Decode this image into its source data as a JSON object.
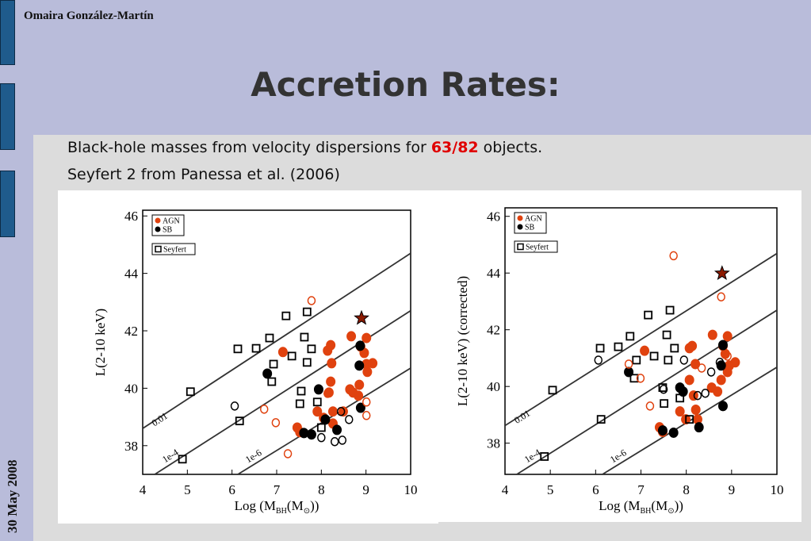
{
  "slide": {
    "author": "Omaira González-Martín",
    "title": "Accretion Rates:",
    "date": "30 May 2008",
    "line1": [
      "Black-hole masses from velocity dispersions for ",
      "63/82",
      " objects."
    ],
    "line2": "Seyfert 2 from Panessa et al. (2006)"
  },
  "chart_data": [
    {
      "type": "scatter",
      "ylabel": "L(2-10 keV)",
      "xlabel_parts": [
        "Log (M",
        "BH",
        "(M",
        "⊙",
        "))"
      ],
      "xlim": [
        4,
        10
      ],
      "ylim": [
        37,
        46.2
      ],
      "xticks": [
        4,
        5,
        6,
        7,
        8,
        9,
        10
      ],
      "yticks": [
        38,
        40,
        42,
        44,
        46
      ],
      "legend": "upper left",
      "series": [
        {
          "name": "AGN",
          "color": "#e0420f",
          "marker": "filled circle",
          "x": [
            7.14,
            8.14,
            8.21,
            8.23,
            8.21,
            8.17,
            7.91,
            8.05,
            8.26,
            8.49,
            8.67,
            8.88,
            9.01,
            8.96,
            9.01,
            9.15,
            9.03,
            8.85,
            8.64,
            8.71,
            8.83,
            7.46,
            7.52,
            8.26
          ],
          "values": [
            41.26,
            41.31,
            41.5,
            40.87,
            40.23,
            39.85,
            39.19,
            38.97,
            39.19,
            39.19,
            41.81,
            41.45,
            41.75,
            41.23,
            40.84,
            40.87,
            40.57,
            40.12,
            39.96,
            39.85,
            39.74,
            38.63,
            38.47,
            38.77
          ]
        },
        {
          "name": "SB",
          "color": "#000000",
          "marker": "filled circle",
          "x": [
            6.79,
            7.94,
            8.85,
            8.87,
            8.88,
            7.61,
            7.78,
            8.35,
            8.09
          ],
          "values": [
            40.51,
            39.96,
            40.79,
            41.48,
            39.32,
            38.44,
            38.39,
            38.55,
            38.91
          ]
        },
        {
          "name": "Seyfert",
          "color": "#000000",
          "marker": "open square",
          "x": [
            5.07,
            4.89,
            6.13,
            6.54,
            6.17,
            6.84,
            7.21,
            7.68,
            6.93,
            6.89,
            7.34,
            7.62,
            7.68,
            7.55,
            7.78,
            7.52,
            7.91,
            8.0
          ],
          "values": [
            39.88,
            37.53,
            41.37,
            41.39,
            38.86,
            41.75,
            42.52,
            42.66,
            40.84,
            40.23,
            41.12,
            41.78,
            40.9,
            39.9,
            41.37,
            39.46,
            39.52,
            38.63
          ]
        },
        {
          "color": "#e0420f",
          "marker": "open circle",
          "x": [
            7.78,
            6.72,
            6.98,
            7.25,
            8.14,
            9.01,
            9.01
          ],
          "values": [
            43.05,
            39.27,
            38.8,
            37.72,
            39.82,
            39.05,
            39.52
          ]
        },
        {
          "color": "#000000",
          "marker": "open circle",
          "x": [
            6.06,
            8.0,
            8.3,
            8.47,
            8.62,
            8.44
          ],
          "values": [
            39.38,
            38.28,
            38.14,
            38.19,
            38.91,
            39.19
          ]
        },
        {
          "color": "#8b1a00",
          "marker": "star",
          "x": [
            8.9
          ],
          "values": [
            42.44
          ]
        }
      ],
      "lines": [
        {
          "label": "0.01",
          "x": [
            4,
            10
          ],
          "values": [
            38.6,
            44.7
          ]
        },
        {
          "label": "1e-4",
          "x": [
            4.27,
            10
          ],
          "values": [
            37,
            42.7
          ]
        },
        {
          "label": "1e-6",
          "x": [
            6.13,
            10
          ],
          "values": [
            37,
            40.7
          ]
        }
      ]
    },
    {
      "type": "scatter",
      "ylabel": "L(2-10 keV) (corrected)",
      "xlabel_parts": [
        "Log (M",
        "BH",
        "(M",
        "⊙",
        "))"
      ],
      "xlim": [
        4,
        10
      ],
      "ylim": [
        36.9,
        46.3
      ],
      "xticks": [
        4,
        5,
        6,
        7,
        8,
        9,
        10
      ],
      "yticks": [
        38,
        40,
        42,
        44,
        46
      ],
      "legend": "upper left",
      "series": [
        {
          "name": "AGN",
          "color": "#e0420f",
          "marker": "filled circle",
          "x": [
            7.08,
            8.07,
            8.13,
            8.2,
            8.07,
            8.16,
            7.86,
            7.99,
            8.21,
            8.58,
            8.81,
            8.91,
            8.86,
            8.95,
            9.08,
            8.91,
            8.77,
            8.56,
            8.69,
            7.41,
            7.48,
            8.25
          ],
          "values": [
            41.26,
            41.35,
            41.43,
            40.79,
            40.23,
            39.68,
            39.12,
            38.84,
            39.18,
            41.82,
            41.43,
            41.77,
            41.15,
            40.74,
            40.85,
            40.51,
            40.23,
            39.96,
            39.82,
            38.56,
            38.4,
            38.84
          ]
        },
        {
          "name": "SB",
          "color": "#000000",
          "marker": "filled circle",
          "x": [
            6.73,
            7.86,
            8.77,
            8.81,
            8.81,
            7.48,
            7.72,
            8.28,
            7.93
          ],
          "values": [
            40.51,
            39.96,
            40.74,
            41.46,
            39.31,
            38.45,
            38.37,
            38.56,
            39.82
          ]
        },
        {
          "name": "Seyfert",
          "color": "#000000",
          "marker": "open square",
          "x": [
            5.05,
            4.87,
            6.1,
            6.5,
            6.12,
            6.76,
            7.16,
            7.64,
            6.9,
            6.85,
            7.29,
            7.57,
            7.6,
            7.48,
            7.74,
            7.51,
            7.86,
            8.07
          ],
          "values": [
            39.87,
            37.53,
            41.35,
            41.4,
            38.84,
            41.77,
            42.52,
            42.69,
            40.93,
            40.29,
            41.07,
            41.82,
            40.93,
            39.96,
            41.35,
            39.4,
            39.59,
            38.84
          ]
        },
        {
          "color": "#e0420f",
          "marker": "open circle",
          "x": [
            7.72,
            8.77,
            6.73,
            6.99,
            7.2,
            8.91,
            8.34
          ],
          "values": [
            44.61,
            43.16,
            40.79,
            40.29,
            39.31,
            41.07,
            40.65
          ]
        },
        {
          "color": "#000000",
          "marker": "open circle",
          "x": [
            6.06,
            7.5,
            7.95,
            8.25,
            8.42,
            8.55,
            8.74
          ],
          "values": [
            40.93,
            39.9,
            40.93,
            39.68,
            39.76,
            40.51,
            40.85
          ]
        },
        {
          "color": "#8b1a00",
          "marker": "star",
          "x": [
            8.79
          ],
          "values": [
            43.99
          ]
        }
      ],
      "lines": [
        {
          "label": "0.01",
          "x": [
            4,
            10
          ],
          "values": [
            38.62,
            44.69
          ]
        },
        {
          "label": "1e-4",
          "x": [
            4.26,
            10
          ],
          "values": [
            36.9,
            42.69
          ]
        },
        {
          "label": "1e-6",
          "x": [
            6.15,
            10
          ],
          "values": [
            36.9,
            40.68
          ]
        }
      ]
    }
  ]
}
